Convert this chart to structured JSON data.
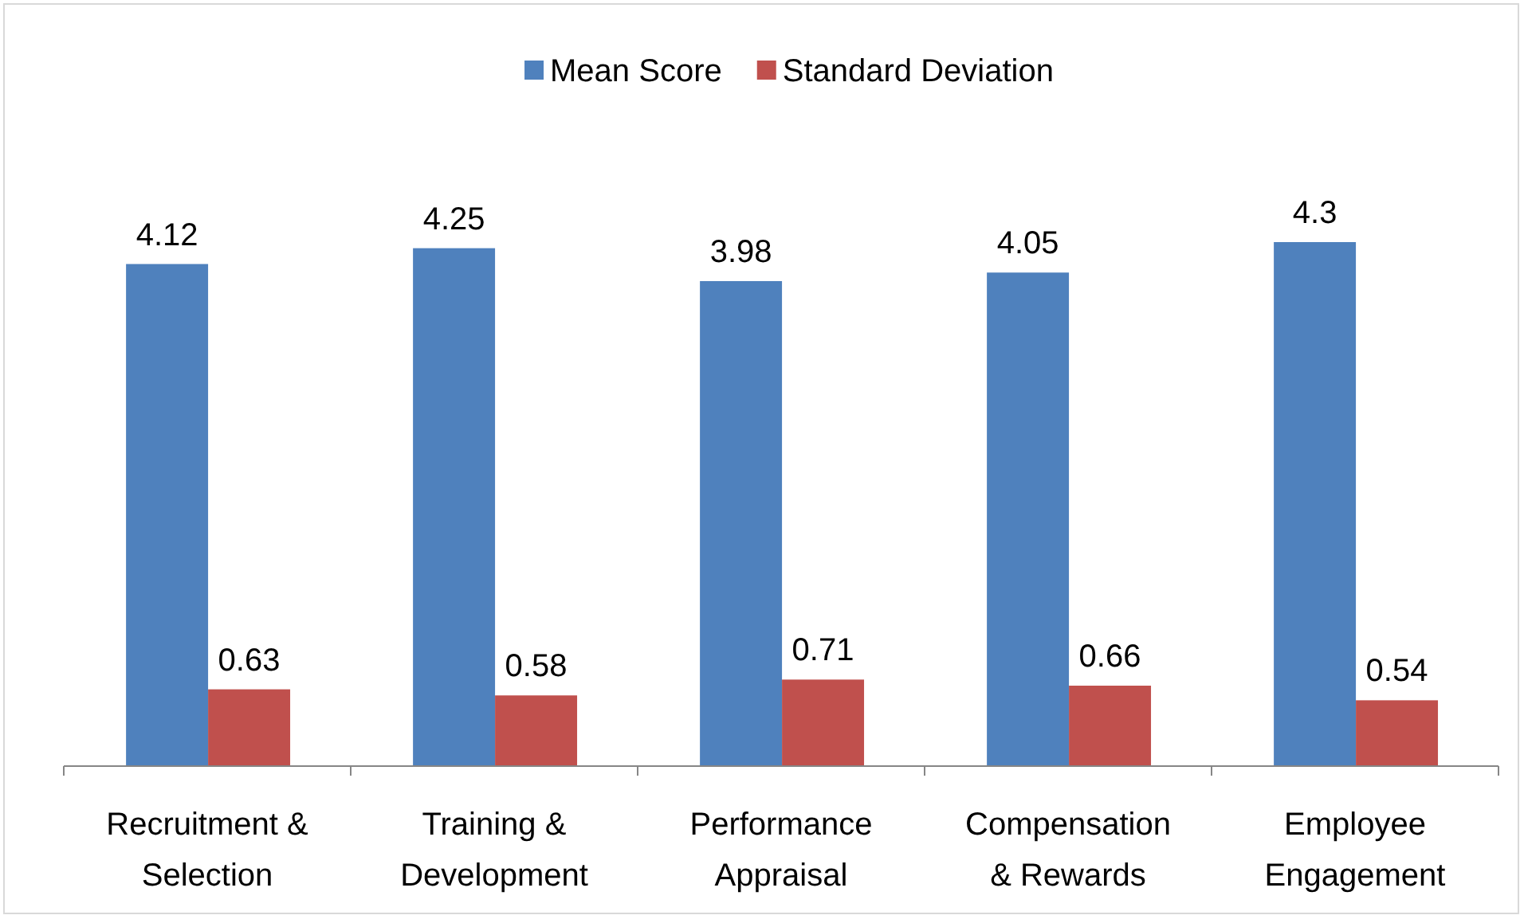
{
  "chart_data": {
    "type": "bar",
    "categories": [
      "Recruitment & Selection",
      "Training & Development",
      "Performance Appraisal",
      "Compensation & Rewards",
      "Employee Engagement"
    ],
    "series": [
      {
        "name": "Mean Score",
        "color": "#4f81bd",
        "values": [
          4.12,
          4.25,
          3.98,
          4.05,
          4.3
        ]
      },
      {
        "name": "Standard Deviation",
        "color": "#c0504d",
        "values": [
          0.63,
          0.58,
          0.71,
          0.66,
          0.54
        ]
      }
    ],
    "data_labels": true,
    "legend": "top"
  }
}
